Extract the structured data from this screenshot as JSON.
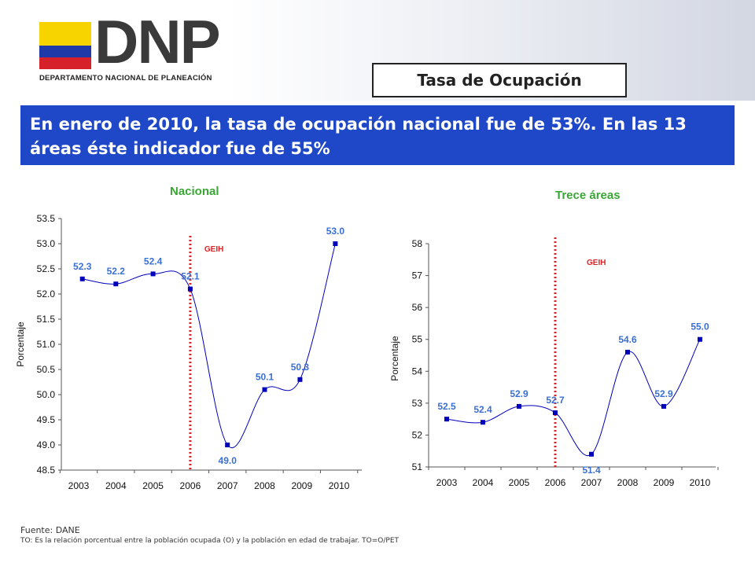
{
  "header": {
    "logo_text": "DNP",
    "logo_subtitle": "DEPARTAMENTO NACIONAL DE PLANEACIÓN",
    "topic": "Tasa de Ocupación"
  },
  "headline": "En enero de 2010, la tasa de ocupación nacional fue de 53%. En las 13 áreas éste indicador fue de 55%",
  "colors": {
    "series": "#0000bb",
    "labels": "#3b6fd4",
    "marker_line": "#dd2222",
    "title_green": "#3aa635",
    "headline_bg": "#1f48c8"
  },
  "chart_data": [
    {
      "type": "line",
      "title": "Nacional",
      "ylabel": "Porcentaje",
      "categories": [
        "2003",
        "2004",
        "2005",
        "2006",
        "2007",
        "2008",
        "2009",
        "2010"
      ],
      "x": [
        2003.1,
        2004.0,
        2005.0,
        2006.0,
        2007.0,
        2008.0,
        2008.95,
        2009.9
      ],
      "values": [
        52.3,
        52.2,
        52.4,
        52.1,
        49.0,
        50.1,
        50.3,
        53.0
      ],
      "data_labels": [
        "52.3",
        "52.2",
        "52.4",
        "52.1",
        "49.0",
        "50.1",
        "50.3",
        "53.0"
      ],
      "ylim": [
        48.5,
        53.5
      ],
      "yticks": [
        "48.5",
        "49.0",
        "49.5",
        "50.0",
        "50.5",
        "51.0",
        "51.5",
        "52.0",
        "52.5",
        "53.0",
        "53.5"
      ],
      "marker": {
        "x": 2006.0,
        "label": "GEIH"
      },
      "grid": false,
      "legend": "none"
    },
    {
      "type": "line",
      "title": "Trece áreas",
      "ylabel": "Porcentaje",
      "categories": [
        "2003",
        "2004",
        "2005",
        "2006",
        "2007",
        "2008",
        "2009",
        "2010"
      ],
      "x": [
        2003.0,
        2004.0,
        2005.0,
        2006.0,
        2007.0,
        2008.0,
        2009.0,
        2010.0
      ],
      "values": [
        52.5,
        52.4,
        52.9,
        52.7,
        51.4,
        54.6,
        52.9,
        55.0
      ],
      "data_labels": [
        "52.5",
        "52.4",
        "52.9",
        "52.7",
        "51.4",
        "54.6",
        "52.9",
        "55.0"
      ],
      "ylim": [
        51,
        58
      ],
      "yticks": [
        "51",
        "52",
        "53",
        "54",
        "55",
        "56",
        "57",
        "58"
      ],
      "marker": {
        "x": 2006.0,
        "label": "GEIH"
      },
      "grid": false,
      "legend": "none"
    }
  ],
  "footer": {
    "source": "Fuente: DANE",
    "note": "TO: Es la relación porcentual  entre  la población  ocupada  (O) y la población   en edad de trabajar. TO=O/PET"
  }
}
